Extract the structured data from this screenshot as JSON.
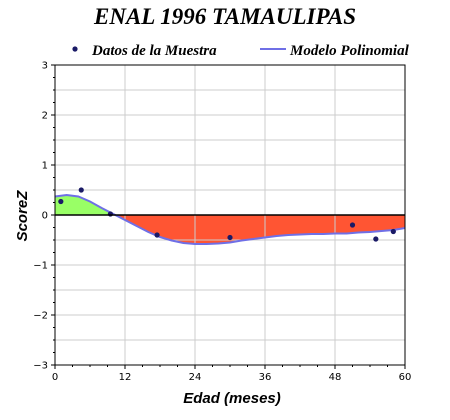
{
  "chart_data": {
    "type": "scatter",
    "title": "ENAL 1996 TAMAULIPAS",
    "xlabel": "Edad (meses)",
    "ylabel": "ScoreZ",
    "xlim": [
      0,
      60
    ],
    "ylim": [
      -3,
      3
    ],
    "xticks": [
      0,
      12,
      24,
      36,
      48,
      60
    ],
    "yticks": [
      -3,
      -2,
      -1,
      0,
      1,
      2,
      3
    ],
    "grid": true,
    "legend_position": "top",
    "series": [
      {
        "name": "Datos de la Muestra",
        "kind": "points",
        "color": "#1a1a66",
        "x": [
          1,
          4.5,
          9.5,
          17.5,
          30,
          51,
          55,
          58
        ],
        "y": [
          0.27,
          0.5,
          0.02,
          -0.4,
          -0.45,
          -0.2,
          -0.48,
          -0.33
        ]
      },
      {
        "name": "Modelo Polinomial",
        "kind": "curve",
        "color": "#6f6fe6",
        "x": [
          0,
          2,
          4,
          6,
          8,
          10,
          12,
          14,
          16,
          18,
          20,
          22,
          24,
          26,
          28,
          30,
          32,
          34,
          36,
          38,
          40,
          42,
          44,
          46,
          48,
          50,
          52,
          54,
          56,
          58,
          60
        ],
        "y": [
          0.37,
          0.4,
          0.37,
          0.27,
          0.14,
          0.02,
          -0.1,
          -0.22,
          -0.34,
          -0.44,
          -0.51,
          -0.56,
          -0.58,
          -0.58,
          -0.57,
          -0.55,
          -0.51,
          -0.48,
          -0.45,
          -0.42,
          -0.4,
          -0.39,
          -0.38,
          -0.38,
          -0.37,
          -0.37,
          -0.35,
          -0.34,
          -0.32,
          -0.3,
          -0.26
        ]
      }
    ],
    "fill_colors": {
      "positive": "#99ff66",
      "negative": "#ff5533"
    }
  }
}
